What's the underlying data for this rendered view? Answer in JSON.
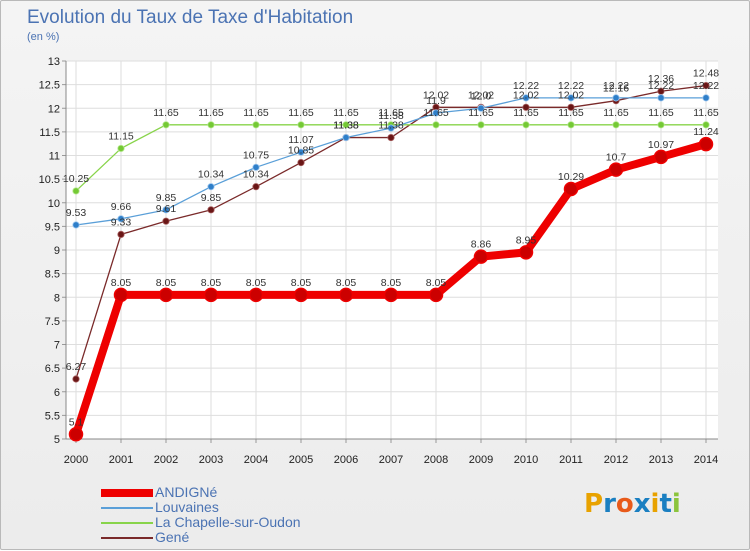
{
  "header": {
    "title": "Evolution du Taux de Taxe d'Habitation",
    "unit": "(en %)"
  },
  "brand": {
    "letters": [
      "P",
      "r",
      "o",
      "x",
      "i",
      "t",
      "i"
    ],
    "colors": [
      "#e8a200",
      "#1a7fc1",
      "#e85a1a",
      "#1a7fc1",
      "#e8a200",
      "#1a7fc1",
      "#8bc43c"
    ]
  },
  "chart_data": {
    "type": "line",
    "title": "Evolution du Taux de Taxe d'Habitation",
    "ylabel": "(en %)",
    "xlabel": "",
    "x": [
      "2000",
      "2001",
      "2002",
      "2003",
      "2004",
      "2005",
      "2006",
      "2007",
      "2008",
      "2009",
      "2010",
      "2011",
      "2012",
      "2013",
      "2014"
    ],
    "ylim": [
      5,
      13
    ],
    "yticks": [
      "5",
      "5.5",
      "6",
      "6.5",
      "7",
      "7.5",
      "8",
      "8.5",
      "9",
      "9.5",
      "10",
      "10.5",
      "11",
      "11.5",
      "12",
      "12.5",
      "13"
    ],
    "grid": true,
    "legend_position": "bottom-left",
    "series": [
      {
        "name": "ANDIGNé",
        "color": "#ee0000",
        "values": [
          5.1,
          8.05,
          8.05,
          8.05,
          8.05,
          8.05,
          8.05,
          8.05,
          8.05,
          8.86,
          8.95,
          10.29,
          10.7,
          10.97,
          11.24
        ],
        "labels": [
          "5.1",
          "8.05",
          "8.05",
          "8.05",
          "8.05",
          "8.05",
          "8.05",
          "8.05",
          "8.05",
          "8.86",
          "8.95",
          "10.29",
          "10.7",
          "10.97",
          "11.24"
        ]
      },
      {
        "name": "Louvaines",
        "color": "#5a9fd8",
        "values": [
          9.53,
          9.66,
          9.85,
          10.34,
          10.75,
          11.07,
          11.38,
          11.58,
          11.9,
          12.0,
          12.22,
          12.22,
          12.22,
          12.22,
          12.22
        ],
        "labels": [
          "9.53",
          "9.66",
          "9.85",
          "10.34",
          "10.75",
          "11.07",
          "11.38",
          "11.58",
          "11.9",
          "12.0",
          "12.22",
          "12.22",
          "12.22",
          "12.22",
          "12.22"
        ]
      },
      {
        "name": "La Chapelle-sur-Oudon",
        "color": "#88d44a",
        "values": [
          10.25,
          11.15,
          11.65,
          11.65,
          11.65,
          11.65,
          11.65,
          11.65,
          11.65,
          11.65,
          11.65,
          11.65,
          11.65,
          11.65,
          11.65
        ],
        "labels": [
          "10.25",
          "11.15",
          "11.65",
          "11.65",
          "11.65",
          "11.65",
          "11.65",
          "11.65",
          "11.65",
          "11.65",
          "11.65",
          "11.65",
          "11.65",
          "11.65",
          "11.65"
        ]
      },
      {
        "name": "Gené",
        "color": "#7a2a2a",
        "values": [
          6.27,
          9.33,
          9.61,
          9.85,
          10.34,
          10.85,
          11.38,
          11.38,
          12.02,
          12.02,
          12.02,
          12.02,
          12.16,
          12.36,
          12.48
        ],
        "labels": [
          "6.27",
          "9.33",
          "9.61",
          "9.85",
          "10.34",
          "10.85",
          "11.38",
          "11.38",
          "12.02",
          "12.02",
          "12.02",
          "12.02",
          "12.16",
          "12.36",
          "12.48"
        ]
      }
    ]
  }
}
